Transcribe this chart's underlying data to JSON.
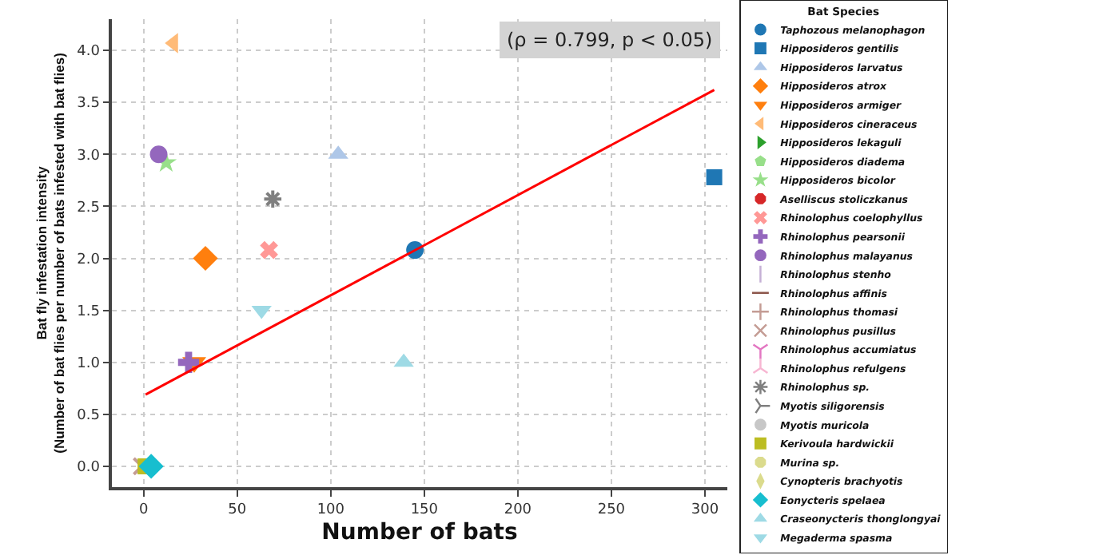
{
  "chart_data": {
    "type": "scatter",
    "xlabel": "Number of bats",
    "ylabel": "Bat fly infestation intensity\n(Number of bat flies per number of bats infested with bat flies)",
    "legend_title": "Bat Species",
    "legend": "right",
    "grid": true,
    "xlim": [
      -17,
      312
    ],
    "ylim": [
      -0.2,
      4.3
    ],
    "xticks": [
      0,
      50,
      100,
      150,
      200,
      250,
      300
    ],
    "yticks": [
      {
        "value": 0,
        "label": "0.0"
      },
      {
        "value": 0.5,
        "label": "0.5"
      },
      {
        "value": 1,
        "label": "1.0"
      },
      {
        "value": 1.5,
        "label": "1.5"
      },
      {
        "value": 2,
        "label": "2.0"
      },
      {
        "value": 2.5,
        "label": "2.5"
      },
      {
        "value": 3,
        "label": "3.0"
      },
      {
        "value": 3.5,
        "label": "3.5"
      },
      {
        "value": 4,
        "label": "4.0"
      }
    ],
    "annotations": [
      "(ρ = 0.799, p < 0.05)"
    ],
    "series": [
      {
        "name": "Taphozous melanophagon",
        "color": "#1f77b4",
        "x": [
          145
        ],
        "values": [
          2.08
        ]
      },
      {
        "name": "Hipposideros gentilis",
        "color": "#1f77b4",
        "x": [
          305
        ],
        "values": [
          2.78
        ]
      },
      {
        "name": "Hipposideros larvatus",
        "color": "#aec7e8",
        "x": [
          104
        ],
        "values": [
          3.0
        ]
      },
      {
        "name": "Hipposideros atrox",
        "color": "#ff7f0e",
        "x": [
          33
        ],
        "values": [
          2.0
        ]
      },
      {
        "name": "Hipposideros armiger",
        "color": "#ff7f0e",
        "x": [
          27
        ],
        "values": [
          1.0
        ]
      },
      {
        "name": "Hipposideros cineraceus",
        "color": "#ffbb78",
        "x": [
          16
        ],
        "values": [
          4.07
        ]
      },
      {
        "name": "Hipposideros lekaguli",
        "color": "#2ca02c",
        "x": [
          null
        ],
        "values": [
          null
        ]
      },
      {
        "name": "Hipposideros diadema",
        "color": "#98df8a",
        "x": [
          null
        ],
        "values": [
          null
        ]
      },
      {
        "name": "Hipposideros bicolor",
        "color": "#98df8a",
        "x": [
          12
        ],
        "values": [
          2.92
        ]
      },
      {
        "name": "Aselliscus stoliczkanus",
        "color": "#d62728",
        "x": [
          null
        ],
        "values": [
          null
        ]
      },
      {
        "name": "Rhinolophus coelophyllus",
        "color": "#ff9896",
        "x": [
          67
        ],
        "values": [
          2.08
        ]
      },
      {
        "name": "Rhinolophus pearsonii",
        "color": "#9467bd",
        "x": [
          24
        ],
        "values": [
          1.0
        ]
      },
      {
        "name": "Rhinolophus malayanus",
        "color": "#9467bd",
        "x": [
          8
        ],
        "values": [
          3.0
        ]
      },
      {
        "name": "Rhinolophus stenho",
        "color": "#c5b0d5",
        "x": [
          null
        ],
        "values": [
          null
        ]
      },
      {
        "name": "Rhinolophus affinis",
        "color": "#8c564b",
        "x": [
          null
        ],
        "values": [
          null
        ]
      },
      {
        "name": "Rhinolophus thomasi",
        "color": "#c49c94",
        "x": [
          null
        ],
        "values": [
          null
        ]
      },
      {
        "name": "Rhinolophus pusillus",
        "color": "#c49c94",
        "x": [
          -1
        ],
        "values": [
          0
        ]
      },
      {
        "name": "Rhinolophus accumiatus",
        "color": "#e377c2",
        "x": [
          null
        ],
        "values": [
          null
        ]
      },
      {
        "name": "Rhinolophus refulgens",
        "color": "#f7b6d2",
        "x": [
          null
        ],
        "values": [
          null
        ]
      },
      {
        "name": "Rhinolophus sp.",
        "color": "#7f7f7f",
        "x": [
          69
        ],
        "values": [
          2.57
        ]
      },
      {
        "name": "Myotis siligorensis",
        "color": "#7f7f7f",
        "x": [
          null
        ],
        "values": [
          null
        ]
      },
      {
        "name": "Myotis muricola",
        "color": "#c7c7c7",
        "x": [
          null
        ],
        "values": [
          null
        ]
      },
      {
        "name": "Kerivoula hardwickii",
        "color": "#bcbd22",
        "x": [
          1
        ],
        "values": [
          0
        ]
      },
      {
        "name": "Murina sp.",
        "color": "#dbdb8d",
        "x": [
          null
        ],
        "values": [
          null
        ]
      },
      {
        "name": "Cynopteris brachyotis",
        "color": "#dbdb8d",
        "x": [
          null
        ],
        "values": [
          null
        ]
      },
      {
        "name": "Eonycteris spelaea",
        "color": "#17becf",
        "x": [
          4
        ],
        "values": [
          0
        ]
      },
      {
        "name": "Craseonycteris thonglongyai",
        "color": "#9edae5",
        "x": [
          139
        ],
        "values": [
          1.0
        ]
      },
      {
        "name": "Megaderma spasma",
        "color": "#9edae5",
        "x": [
          63
        ],
        "values": [
          1.5
        ]
      },
      {
        "type": "line",
        "color": "#ff0000",
        "marker": "none",
        "x": [
          1,
          305
        ],
        "values": [
          0.69,
          3.62
        ]
      }
    ]
  }
}
